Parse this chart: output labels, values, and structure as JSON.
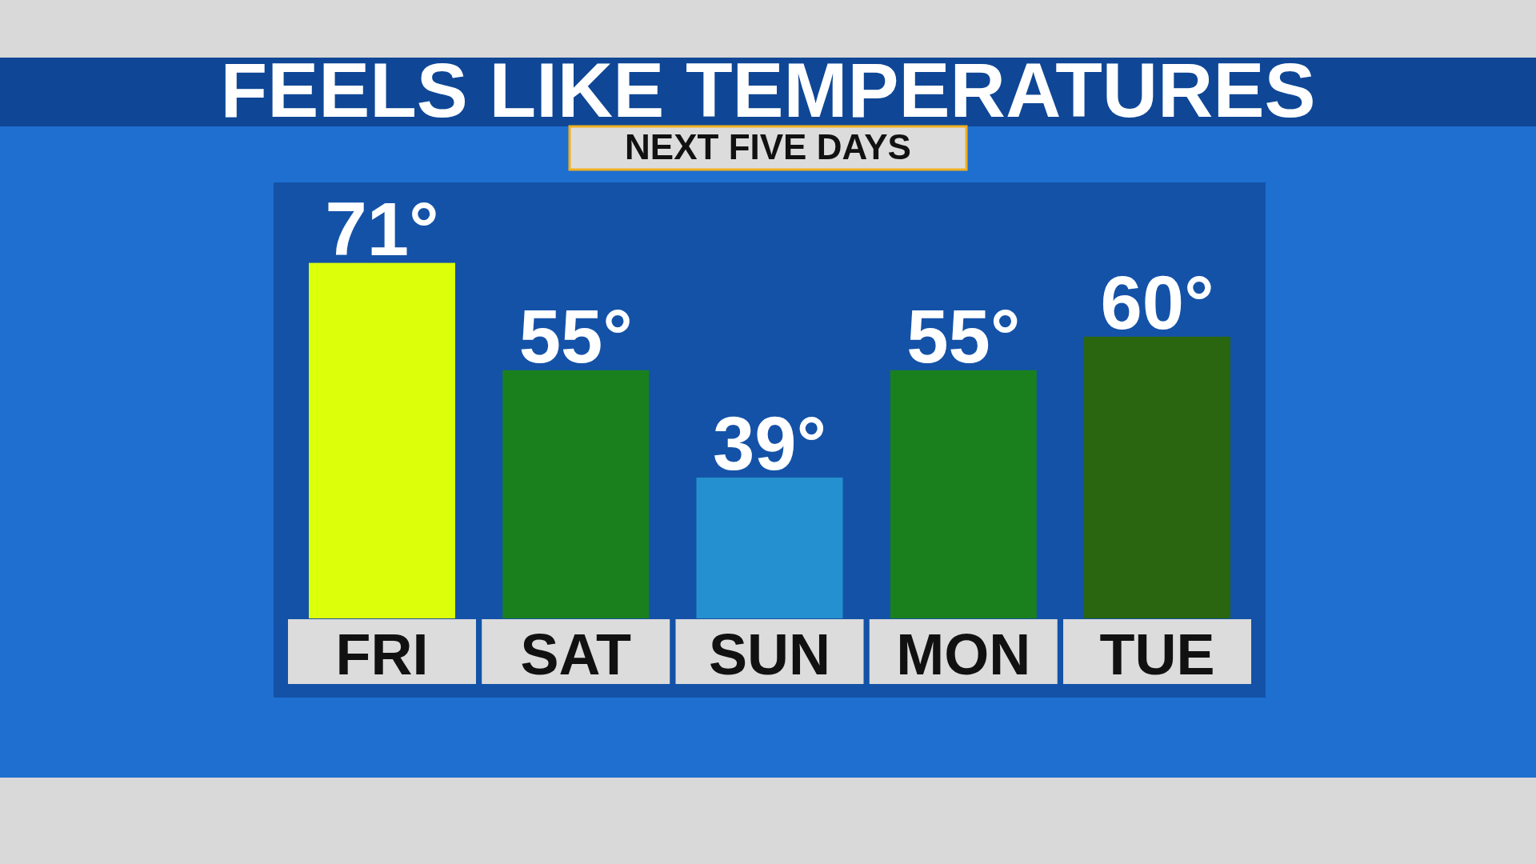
{
  "chart_data": {
    "type": "bar",
    "title": "FEELS LIKE TEMPERATURES",
    "subtitle": "NEXT FIVE DAYS",
    "categories": [
      "FRI",
      "SAT",
      "SUN",
      "MON",
      "TUE"
    ],
    "values": [
      71,
      55,
      39,
      55,
      60
    ],
    "colors": [
      "#dcff0a",
      "#1a801e",
      "#2590cf",
      "#1a801e",
      "#2a650f"
    ],
    "value_labels": [
      "71°",
      "55°",
      "39°",
      "55°",
      "60°"
    ],
    "ylim": [
      18,
      83
    ]
  }
}
